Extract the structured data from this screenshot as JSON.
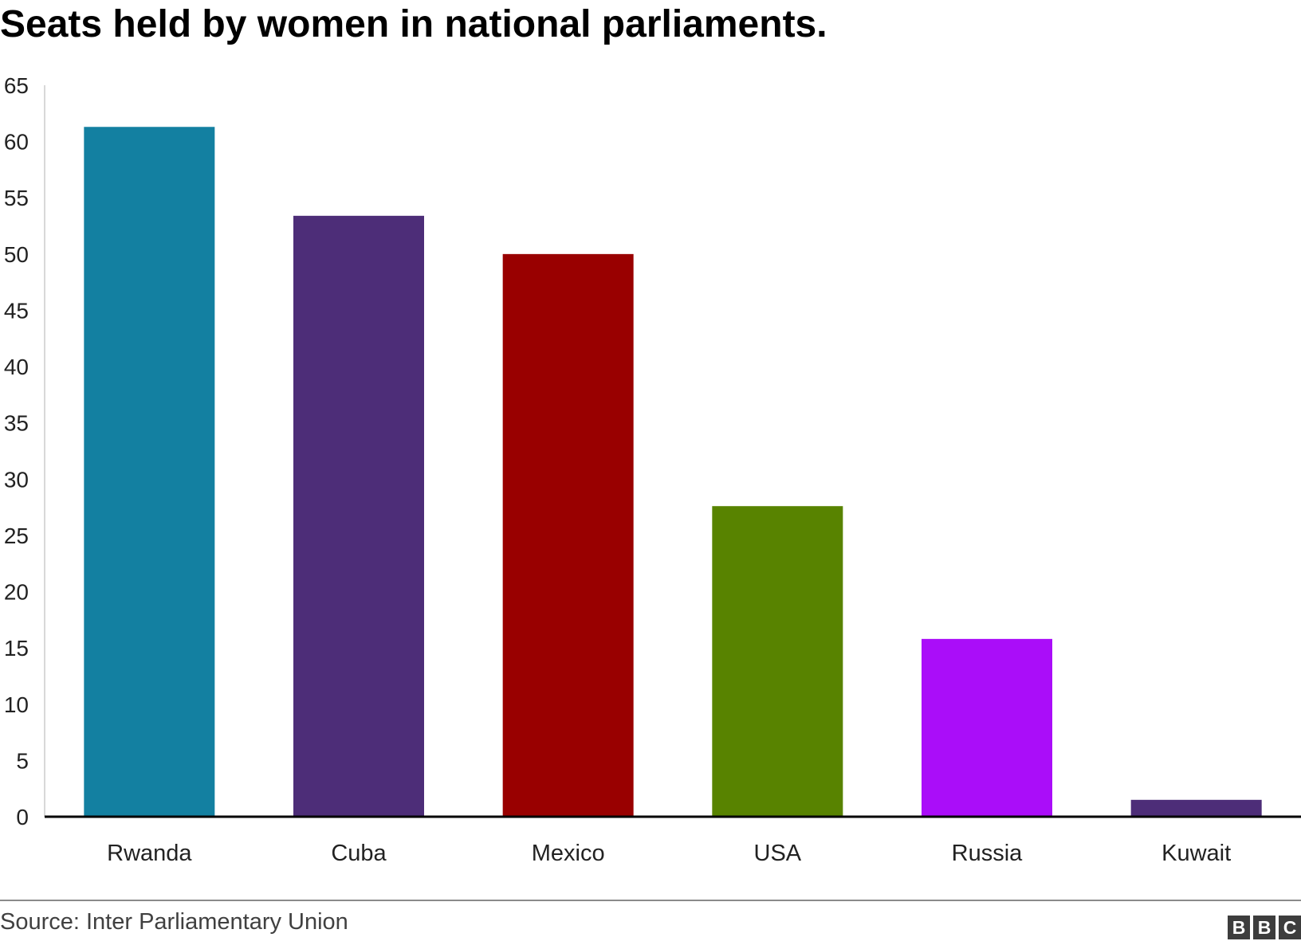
{
  "header": {
    "title": "Seats held by women in national parliaments."
  },
  "footer": {
    "source": "Source: Inter Parliamentary Union",
    "logo_letters": [
      "B",
      "B",
      "C"
    ]
  },
  "chart_data": {
    "type": "bar",
    "title": "Seats held by women in national parliaments.",
    "xlabel": "",
    "ylabel": "",
    "categories": [
      "Rwanda",
      "Cuba",
      "Mexico",
      "USA",
      "Russia",
      "Kuwait"
    ],
    "values": [
      61.3,
      53.4,
      50.0,
      27.6,
      15.8,
      1.5
    ],
    "colors": [
      "#1380A1",
      "#4D2D78",
      "#990000",
      "#588300",
      "#AA0DF9",
      "#4D2D78"
    ],
    "ylim": [
      0,
      65
    ],
    "yticks": [
      0,
      5,
      10,
      15,
      20,
      25,
      30,
      35,
      40,
      45,
      50,
      55,
      60,
      65
    ],
    "grid": false,
    "legend": "none"
  }
}
